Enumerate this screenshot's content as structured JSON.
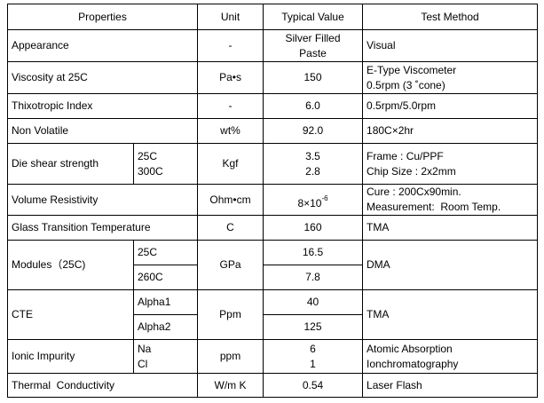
{
  "header": {
    "property": "Properties",
    "unit": "Unit",
    "value": "Typical Value",
    "method": "Test Method"
  },
  "rows": [
    {
      "property": "Appearance",
      "unit": "-",
      "value": [
        "Silver Filled",
        "Paste"
      ],
      "method": "Visual"
    },
    {
      "property": "Viscosity at 25C",
      "unit": "Pa•s",
      "value": "150",
      "method": [
        "E-Type Viscometer",
        "0.5rpm (3 ˚cone)"
      ]
    },
    {
      "property": "Thixotropic Index",
      "unit": "-",
      "value": "6.0",
      "method": "0.5rpm/5.0rpm"
    },
    {
      "property": "Non Volatile",
      "unit": "wt%",
      "value": "92.0",
      "method": "180C×2hr"
    },
    {
      "property": "Die shear strength",
      "conditions": [
        "25C",
        "300C"
      ],
      "unit": "Kgf",
      "value": [
        "3.5",
        "2.8"
      ],
      "method": [
        "Frame : Cu/PPF",
        "Chip Size : 2x2mm"
      ]
    },
    {
      "property": "Volume Resistivity",
      "unit": "Ohm•cm",
      "value": {
        "base": "8×10",
        "exponent": "-6"
      },
      "method": [
        "Cure : 200Cx90min.",
        "Measurement:  Room Temp."
      ]
    },
    {
      "property": "Glass Transition Temperature",
      "unit": "C",
      "value": "160",
      "method": "TMA"
    },
    {
      "property": "Modules（25C)",
      "conditions": [
        "25C",
        "260C"
      ],
      "unit": "GPa",
      "value": [
        "16.5",
        "7.8"
      ],
      "method": "DMA"
    },
    {
      "property": "CTE",
      "conditions": [
        "Alpha1",
        "Alpha2"
      ],
      "unit": "Ppm",
      "value": [
        "40",
        "125"
      ],
      "method": "TMA"
    },
    {
      "property": "Ionic Impurity",
      "conditions": [
        "Na",
        "Cl"
      ],
      "unit": "ppm",
      "value": [
        "6",
        "1"
      ],
      "method": [
        "Atomic Absorption",
        "Ionchromatography"
      ]
    },
    {
      "property": "Thermal  Conductivity",
      "unit": "W/m K",
      "value": "0.54",
      "method": "Laser Flash"
    }
  ]
}
